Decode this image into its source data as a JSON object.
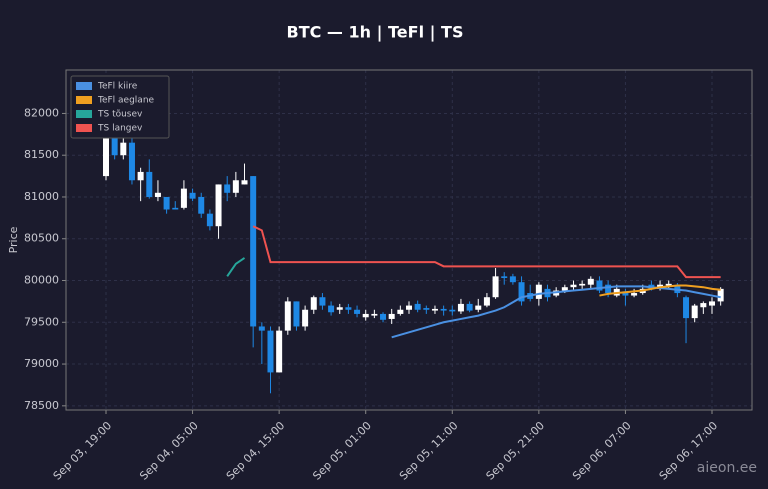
{
  "chart_data": {
    "type": "candlestick",
    "title": "BTC — 1h  |  TeFl  |  TS",
    "y_label": "Price",
    "watermark": "aieon.ee",
    "x": [
      "Sep 03, 19:00",
      "Sep 03, 20:00",
      "Sep 03, 21:00",
      "Sep 03, 22:00",
      "Sep 03, 23:00",
      "Sep 04, 00:00",
      "Sep 04, 01:00",
      "Sep 04, 02:00",
      "Sep 04, 03:00",
      "Sep 04, 04:00",
      "Sep 04, 05:00",
      "Sep 04, 06:00",
      "Sep 04, 07:00",
      "Sep 04, 08:00",
      "Sep 04, 09:00",
      "Sep 04, 10:00",
      "Sep 04, 11:00",
      "Sep 04, 12:00",
      "Sep 04, 13:00",
      "Sep 04, 14:00",
      "Sep 04, 15:00",
      "Sep 04, 16:00",
      "Sep 04, 17:00",
      "Sep 04, 18:00",
      "Sep 04, 19:00",
      "Sep 04, 20:00",
      "Sep 04, 21:00",
      "Sep 04, 22:00",
      "Sep 04, 23:00",
      "Sep 05, 00:00",
      "Sep 05, 01:00",
      "Sep 05, 02:00",
      "Sep 05, 03:00",
      "Sep 05, 04:00",
      "Sep 05, 05:00",
      "Sep 05, 06:00",
      "Sep 05, 07:00",
      "Sep 05, 08:00",
      "Sep 05, 09:00",
      "Sep 05, 10:00",
      "Sep 05, 11:00",
      "Sep 05, 12:00",
      "Sep 05, 13:00",
      "Sep 05, 14:00",
      "Sep 05, 15:00",
      "Sep 05, 16:00",
      "Sep 05, 17:00",
      "Sep 05, 18:00",
      "Sep 05, 19:00",
      "Sep 05, 20:00",
      "Sep 05, 21:00",
      "Sep 05, 22:00",
      "Sep 05, 23:00",
      "Sep 06, 00:00",
      "Sep 06, 01:00",
      "Sep 06, 02:00",
      "Sep 06, 03:00",
      "Sep 06, 04:00",
      "Sep 06, 05:00",
      "Sep 06, 06:00",
      "Sep 06, 07:00",
      "Sep 06, 08:00",
      "Sep 06, 09:00",
      "Sep 06, 10:00",
      "Sep 06, 11:00",
      "Sep 06, 12:00",
      "Sep 06, 13:00",
      "Sep 06, 14:00",
      "Sep 06, 15:00",
      "Sep 06, 16:00",
      "Sep 06, 17:00",
      "Sep 06, 18:00"
    ],
    "open": [
      81250,
      81800,
      81500,
      81650,
      81200,
      81300,
      81000,
      81000,
      80870,
      80870,
      81050,
      81000,
      80800,
      80650,
      81150,
      81050,
      81150,
      81250,
      79450,
      79400,
      78900,
      79400,
      79750,
      79450,
      79650,
      79800,
      79700,
      79650,
      79680,
      79650,
      79560,
      79580,
      79600,
      79540,
      79600,
      79650,
      79720,
      79670,
      79640,
      79660,
      79650,
      79630,
      79720,
      79650,
      79700,
      79800,
      80050,
      80050,
      79980,
      79850,
      79780,
      79900,
      79820,
      79880,
      79920,
      79940,
      79950,
      80000,
      79950,
      79820,
      79870,
      79820,
      79850,
      79950,
      79900,
      79940,
      79930,
      79800,
      79550,
      79680,
      79700,
      79750
    ],
    "high": [
      81900,
      81850,
      81700,
      81700,
      81350,
      81450,
      81200,
      81000,
      80950,
      81200,
      81100,
      81050,
      80850,
      81150,
      81250,
      81300,
      81400,
      81250,
      79500,
      79450,
      79450,
      79800,
      79750,
      79700,
      79820,
      79850,
      79750,
      79720,
      79720,
      79700,
      79650,
      79650,
      79620,
      79660,
      79700,
      79750,
      79760,
      79700,
      79700,
      79700,
      79700,
      79780,
      79750,
      79780,
      79850,
      80150,
      80100,
      80080,
      80050,
      79950,
      79980,
      79950,
      79920,
      79950,
      80000,
      80000,
      80050,
      80050,
      80000,
      79950,
      79900,
      79900,
      79950,
      80000,
      80000,
      80000,
      79970,
      79820,
      79720,
      79750,
      79800,
      79920
    ],
    "low": [
      81200,
      81450,
      81450,
      81150,
      80950,
      80980,
      80950,
      80800,
      80850,
      80850,
      80950,
      80750,
      80600,
      80500,
      80950,
      81000,
      81150,
      79200,
      79000,
      78650,
      78900,
      79350,
      79400,
      79400,
      79600,
      79650,
      79580,
      79600,
      79600,
      79560,
      79520,
      79550,
      79500,
      79480,
      79580,
      79600,
      79620,
      79600,
      79600,
      79580,
      79580,
      79600,
      79620,
      79620,
      79680,
      79780,
      79950,
      79950,
      79700,
      79750,
      79700,
      79750,
      79800,
      79850,
      79880,
      79900,
      79900,
      79850,
      79800,
      79800,
      79700,
      79800,
      79830,
      79880,
      79880,
      79900,
      79800,
      79250,
      79500,
      79600,
      79600,
      79700
    ],
    "close": [
      81800,
      81500,
      81650,
      81200,
      81300,
      81000,
      81050,
      80850,
      80850,
      81100,
      80980,
      80800,
      80650,
      81150,
      81050,
      81200,
      81200,
      79450,
      79400,
      78900,
      79400,
      79750,
      79450,
      79650,
      79800,
      79700,
      79620,
      79680,
      79650,
      79600,
      79600,
      79600,
      79530,
      79600,
      79650,
      79700,
      79650,
      79650,
      79660,
      79640,
      79630,
      79720,
      79640,
      79700,
      79800,
      80050,
      80030,
      79980,
      79750,
      79780,
      79950,
      79800,
      79880,
      79920,
      79950,
      79960,
      80020,
      79880,
      79850,
      79900,
      79820,
      79850,
      79900,
      79900,
      79950,
      79960,
      79850,
      79550,
      79700,
      79730,
      79750,
      79900
    ],
    "up_color": "#ffffff",
    "down_color": "#1e88e5",
    "series": [
      {
        "name": "TeFl kiire",
        "color": "#4a90e2",
        "values": [
          null,
          null,
          null,
          null,
          null,
          null,
          null,
          null,
          null,
          null,
          null,
          null,
          null,
          null,
          null,
          null,
          null,
          null,
          null,
          null,
          null,
          null,
          null,
          null,
          null,
          null,
          null,
          null,
          null,
          null,
          null,
          null,
          null,
          79320,
          79350,
          79380,
          79410,
          79440,
          79470,
          79500,
          79520,
          79540,
          79560,
          79580,
          79610,
          79640,
          79680,
          79740,
          79800,
          79820,
          79840,
          79850,
          79860,
          79870,
          79880,
          79890,
          79900,
          79910,
          79920,
          79930,
          79930,
          79930,
          79930,
          79920,
          79910,
          79900,
          79890,
          79880,
          79860,
          79840,
          79820,
          79800
        ]
      },
      {
        "name": "TeFl aeglane",
        "color": "#f0a020",
        "values": [
          null,
          null,
          null,
          null,
          null,
          null,
          null,
          null,
          null,
          null,
          null,
          null,
          null,
          null,
          null,
          null,
          null,
          null,
          null,
          null,
          null,
          null,
          null,
          null,
          null,
          null,
          null,
          null,
          null,
          null,
          null,
          null,
          null,
          null,
          null,
          null,
          null,
          null,
          null,
          null,
          null,
          null,
          null,
          null,
          null,
          null,
          null,
          null,
          null,
          null,
          null,
          null,
          null,
          null,
          null,
          null,
          null,
          79820,
          79840,
          79850,
          79860,
          79870,
          79880,
          79900,
          79920,
          79930,
          79940,
          79940,
          79930,
          79920,
          79900,
          79890
        ]
      },
      {
        "name": "TS tõusev",
        "color": "#26a69a",
        "values": [
          null,
          null,
          null,
          null,
          null,
          null,
          null,
          null,
          null,
          null,
          null,
          null,
          null,
          null,
          80050,
          80200,
          80270,
          null,
          null,
          null,
          null,
          null,
          null,
          null,
          null,
          null,
          null,
          null,
          null,
          null,
          null,
          null,
          null,
          null,
          null,
          null,
          null,
          null,
          null,
          null,
          null,
          null,
          null,
          null,
          null,
          null,
          null,
          null,
          null,
          null,
          null,
          null,
          null,
          null,
          null,
          null,
          null,
          null,
          null,
          null,
          null,
          null,
          null,
          null,
          null,
          null,
          null,
          null,
          null,
          null,
          null,
          null
        ]
      },
      {
        "name": "TS langev",
        "color": "#ef5350",
        "values": [
          null,
          null,
          null,
          null,
          null,
          null,
          null,
          null,
          null,
          null,
          null,
          null,
          null,
          null,
          null,
          null,
          null,
          80650,
          80600,
          80220,
          80220,
          80220,
          80220,
          80220,
          80220,
          80220,
          80220,
          80220,
          80220,
          80220,
          80220,
          80220,
          80220,
          80220,
          80220,
          80220,
          80220,
          80220,
          80220,
          80170,
          80170,
          80170,
          80170,
          80170,
          80170,
          80170,
          80170,
          80170,
          80170,
          80170,
          80170,
          80170,
          80170,
          80170,
          80170,
          80170,
          80170,
          80170,
          80170,
          80170,
          80170,
          80170,
          80170,
          80170,
          80170,
          80170,
          80170,
          80040,
          80040,
          80040,
          80040,
          80040
        ]
      }
    ],
    "xticks": [
      "Sep 03, 19:00",
      "Sep 04, 05:00",
      "Sep 04, 15:00",
      "Sep 05, 01:00",
      "Sep 05, 11:00",
      "Sep 05, 21:00",
      "Sep 06, 07:00",
      "Sep 06, 17:00"
    ],
    "ylim": [
      78450,
      82520
    ],
    "yticks": [
      78500,
      79000,
      79500,
      80000,
      80500,
      81000,
      81500,
      82000
    ],
    "grid": true,
    "legend": "upper left"
  }
}
